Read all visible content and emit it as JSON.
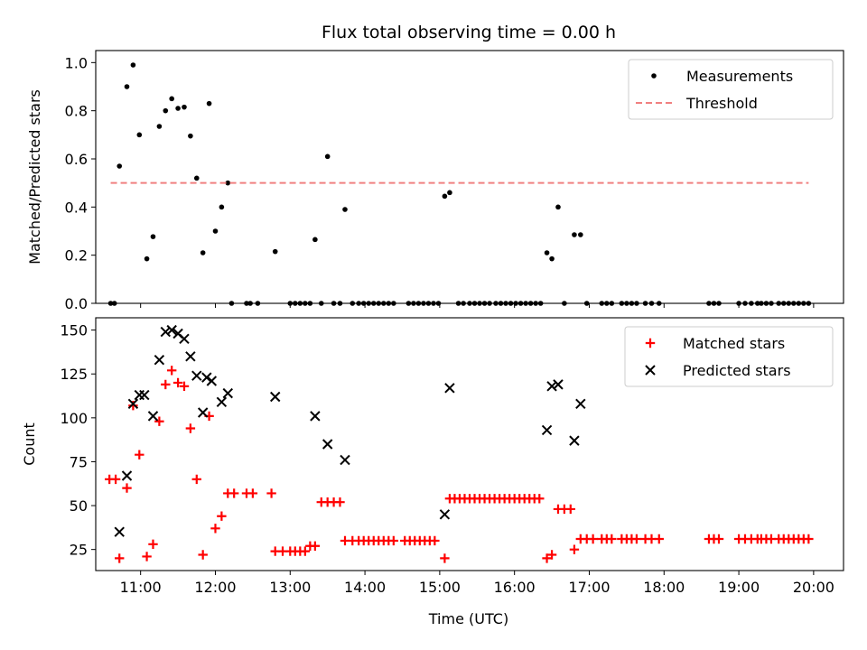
{
  "chart_data": [
    {
      "type": "scatter",
      "title": "Flux total observing time = 0.00 h",
      "xlabel": "",
      "ylabel": "Matched/Predicted stars",
      "xlim": [
        "10:24",
        "20:24"
      ],
      "ylim": [
        0,
        1.05
      ],
      "yticks": [
        "0.0",
        "0.2",
        "0.4",
        "0.6",
        "0.8",
        "1.0"
      ],
      "legend_position": "top-right",
      "series": [
        {
          "name": "Measurements",
          "marker": "dot",
          "color": "#000000",
          "points": [
            [
              "10:36",
              0
            ],
            [
              "10:39",
              0
            ],
            [
              "10:43",
              0.57
            ],
            [
              "10:49",
              0.9
            ],
            [
              "10:54",
              0.99
            ],
            [
              "10:59",
              0.7
            ],
            [
              "11:05",
              0.185
            ],
            [
              "11:10",
              0.277
            ],
            [
              "11:15",
              0.735
            ],
            [
              "11:20",
              0.8
            ],
            [
              "11:25",
              0.85
            ],
            [
              "11:30",
              0.81
            ],
            [
              "11:35",
              0.815
            ],
            [
              "11:40",
              0.695
            ],
            [
              "11:45",
              0.52
            ],
            [
              "11:50",
              0.21
            ],
            [
              "11:55",
              0.83
            ],
            [
              "12:00",
              0.3
            ],
            [
              "12:05",
              0.4
            ],
            [
              "12:10",
              0.5
            ],
            [
              "12:13",
              0
            ],
            [
              "12:25",
              0
            ],
            [
              "12:28",
              0
            ],
            [
              "12:34",
              0
            ],
            [
              "12:48",
              0.215
            ],
            [
              "13:00",
              0
            ],
            [
              "13:04",
              0
            ],
            [
              "13:08",
              0
            ],
            [
              "13:12",
              0
            ],
            [
              "13:16",
              0
            ],
            [
              "13:20",
              0.265
            ],
            [
              "13:25",
              0
            ],
            [
              "13:30",
              0.61
            ],
            [
              "13:35",
              0
            ],
            [
              "13:40",
              0
            ],
            [
              "13:44",
              0.39
            ],
            [
              "13:50",
              0
            ],
            [
              "13:55",
              0
            ],
            [
              "13:59",
              0
            ],
            [
              "14:03",
              0
            ],
            [
              "14:07",
              0
            ],
            [
              "14:11",
              0
            ],
            [
              "14:15",
              0
            ],
            [
              "14:19",
              0
            ],
            [
              "14:23",
              0
            ],
            [
              "14:35",
              0
            ],
            [
              "14:39",
              0
            ],
            [
              "14:43",
              0
            ],
            [
              "14:47",
              0
            ],
            [
              "14:51",
              0
            ],
            [
              "14:55",
              0
            ],
            [
              "14:59",
              0
            ],
            [
              "15:04",
              0.445
            ],
            [
              "15:08",
              0.46
            ],
            [
              "15:15",
              0
            ],
            [
              "15:19",
              0
            ],
            [
              "15:24",
              0
            ],
            [
              "15:28",
              0
            ],
            [
              "15:32",
              0
            ],
            [
              "15:36",
              0
            ],
            [
              "15:40",
              0
            ],
            [
              "15:45",
              0
            ],
            [
              "15:49",
              0
            ],
            [
              "15:53",
              0
            ],
            [
              "15:57",
              0
            ],
            [
              "16:01",
              0
            ],
            [
              "16:05",
              0
            ],
            [
              "16:09",
              0
            ],
            [
              "16:13",
              0
            ],
            [
              "16:17",
              0
            ],
            [
              "16:21",
              0
            ],
            [
              "16:26",
              0.21
            ],
            [
              "16:30",
              0.185
            ],
            [
              "16:35",
              0.4
            ],
            [
              "16:40",
              0
            ],
            [
              "16:48",
              0.285
            ],
            [
              "16:53",
              0.285
            ],
            [
              "16:58",
              0
            ],
            [
              "17:10",
              0
            ],
            [
              "17:14",
              0
            ],
            [
              "17:18",
              0
            ],
            [
              "17:26",
              0
            ],
            [
              "17:30",
              0
            ],
            [
              "17:34",
              0
            ],
            [
              "17:38",
              0
            ],
            [
              "17:45",
              0
            ],
            [
              "17:50",
              0
            ],
            [
              "17:56",
              0
            ],
            [
              "18:36",
              0
            ],
            [
              "18:40",
              0
            ],
            [
              "18:44",
              0
            ],
            [
              "19:00",
              0
            ],
            [
              "19:05",
              0
            ],
            [
              "19:10",
              0
            ],
            [
              "19:15",
              0
            ],
            [
              "19:18",
              0
            ],
            [
              "19:22",
              0
            ],
            [
              "19:26",
              0
            ],
            [
              "19:32",
              0
            ],
            [
              "19:36",
              0
            ],
            [
              "19:40",
              0
            ],
            [
              "19:44",
              0
            ],
            [
              "19:48",
              0
            ],
            [
              "19:52",
              0
            ],
            [
              "19:56",
              0
            ]
          ]
        },
        {
          "name": "Threshold",
          "marker": "dashed-line",
          "color": "#f08080",
          "points": [
            [
              "10:36",
              0.5
            ],
            [
              "19:56",
              0.5
            ]
          ]
        }
      ]
    },
    {
      "type": "scatter",
      "title": "",
      "xlabel": "Time (UTC)",
      "ylabel": "Count",
      "xlim": [
        "10:24",
        "20:24"
      ],
      "ylim": [
        13,
        157
      ],
      "yticks": [
        "25",
        "50",
        "75",
        "100",
        "125",
        "150"
      ],
      "xticks": [
        "11:00",
        "12:00",
        "13:00",
        "14:00",
        "15:00",
        "16:00",
        "17:00",
        "18:00",
        "19:00",
        "20:00"
      ],
      "legend_position": "top-right",
      "series": [
        {
          "name": "Matched stars",
          "marker": "plus",
          "color": "#ff0000",
          "points": [
            [
              "10:35",
              65
            ],
            [
              "10:40",
              65
            ],
            [
              "10:43",
              20
            ],
            [
              "10:49",
              60
            ],
            [
              "10:54",
              107
            ],
            [
              "10:59",
              79
            ],
            [
              "11:05",
              21
            ],
            [
              "11:10",
              28
            ],
            [
              "11:15",
              98
            ],
            [
              "11:20",
              119
            ],
            [
              "11:25",
              127
            ],
            [
              "11:30",
              120
            ],
            [
              "11:35",
              118
            ],
            [
              "11:40",
              94
            ],
            [
              "11:45",
              65
            ],
            [
              "11:50",
              22
            ],
            [
              "11:55",
              101
            ],
            [
              "12:00",
              37
            ],
            [
              "12:05",
              44
            ],
            [
              "12:10",
              57
            ],
            [
              "12:15",
              57
            ],
            [
              "12:25",
              57
            ],
            [
              "12:30",
              57
            ],
            [
              "12:45",
              57
            ],
            [
              "12:48",
              24
            ],
            [
              "12:54",
              24
            ],
            [
              "13:00",
              24
            ],
            [
              "13:04",
              24
            ],
            [
              "13:08",
              24
            ],
            [
              "13:12",
              24
            ],
            [
              "13:16",
              27
            ],
            [
              "13:20",
              27
            ],
            [
              "13:25",
              52
            ],
            [
              "13:30",
              52
            ],
            [
              "13:35",
              52
            ],
            [
              "13:40",
              52
            ],
            [
              "13:44",
              30
            ],
            [
              "13:50",
              30
            ],
            [
              "13:55",
              30
            ],
            [
              "13:59",
              30
            ],
            [
              "14:03",
              30
            ],
            [
              "14:07",
              30
            ],
            [
              "14:11",
              30
            ],
            [
              "14:15",
              30
            ],
            [
              "14:19",
              30
            ],
            [
              "14:23",
              30
            ],
            [
              "14:32",
              30
            ],
            [
              "14:36",
              30
            ],
            [
              "14:40",
              30
            ],
            [
              "14:44",
              30
            ],
            [
              "14:48",
              30
            ],
            [
              "14:52",
              30
            ],
            [
              "14:56",
              30
            ],
            [
              "15:04",
              20
            ],
            [
              "15:08",
              54
            ],
            [
              "15:12",
              54
            ],
            [
              "15:16",
              54
            ],
            [
              "15:20",
              54
            ],
            [
              "15:24",
              54
            ],
            [
              "15:28",
              54
            ],
            [
              "15:32",
              54
            ],
            [
              "15:36",
              54
            ],
            [
              "15:40",
              54
            ],
            [
              "15:44",
              54
            ],
            [
              "15:48",
              54
            ],
            [
              "15:52",
              54
            ],
            [
              "15:56",
              54
            ],
            [
              "16:00",
              54
            ],
            [
              "16:04",
              54
            ],
            [
              "16:08",
              54
            ],
            [
              "16:12",
              54
            ],
            [
              "16:16",
              54
            ],
            [
              "16:20",
              54
            ],
            [
              "16:26",
              20
            ],
            [
              "16:30",
              22
            ],
            [
              "16:35",
              48
            ],
            [
              "16:40",
              48
            ],
            [
              "16:45",
              48
            ],
            [
              "16:48",
              25
            ],
            [
              "16:53",
              31
            ],
            [
              "16:58",
              31
            ],
            [
              "17:03",
              31
            ],
            [
              "17:10",
              31
            ],
            [
              "17:14",
              31
            ],
            [
              "17:18",
              31
            ],
            [
              "17:26",
              31
            ],
            [
              "17:30",
              31
            ],
            [
              "17:34",
              31
            ],
            [
              "17:38",
              31
            ],
            [
              "17:45",
              31
            ],
            [
              "17:50",
              31
            ],
            [
              "17:56",
              31
            ],
            [
              "18:36",
              31
            ],
            [
              "18:40",
              31
            ],
            [
              "18:44",
              31
            ],
            [
              "19:00",
              31
            ],
            [
              "19:05",
              31
            ],
            [
              "19:10",
              31
            ],
            [
              "19:15",
              31
            ],
            [
              "19:18",
              31
            ],
            [
              "19:22",
              31
            ],
            [
              "19:26",
              31
            ],
            [
              "19:32",
              31
            ],
            [
              "19:36",
              31
            ],
            [
              "19:40",
              31
            ],
            [
              "19:44",
              31
            ],
            [
              "19:48",
              31
            ],
            [
              "19:52",
              31
            ],
            [
              "19:56",
              31
            ]
          ]
        },
        {
          "name": "Predicted stars",
          "marker": "x",
          "color": "#000000",
          "points": [
            [
              "10:43",
              35
            ],
            [
              "10:49",
              67
            ],
            [
              "10:54",
              108
            ],
            [
              "10:59",
              113
            ],
            [
              "11:03",
              113
            ],
            [
              "11:10",
              101
            ],
            [
              "11:15",
              133
            ],
            [
              "11:20",
              149
            ],
            [
              "11:25",
              150
            ],
            [
              "11:30",
              148
            ],
            [
              "11:35",
              145
            ],
            [
              "11:40",
              135
            ],
            [
              "11:45",
              124
            ],
            [
              "11:50",
              103
            ],
            [
              "11:53",
              123
            ],
            [
              "11:57",
              121
            ],
            [
              "12:05",
              109
            ],
            [
              "12:10",
              114
            ],
            [
              "12:48",
              112
            ],
            [
              "13:20",
              101
            ],
            [
              "13:30",
              85
            ],
            [
              "13:44",
              76
            ],
            [
              "15:04",
              45
            ],
            [
              "15:08",
              117
            ],
            [
              "16:26",
              93
            ],
            [
              "16:30",
              118
            ],
            [
              "16:35",
              119
            ],
            [
              "16:48",
              87
            ],
            [
              "16:53",
              108
            ]
          ]
        }
      ]
    }
  ]
}
